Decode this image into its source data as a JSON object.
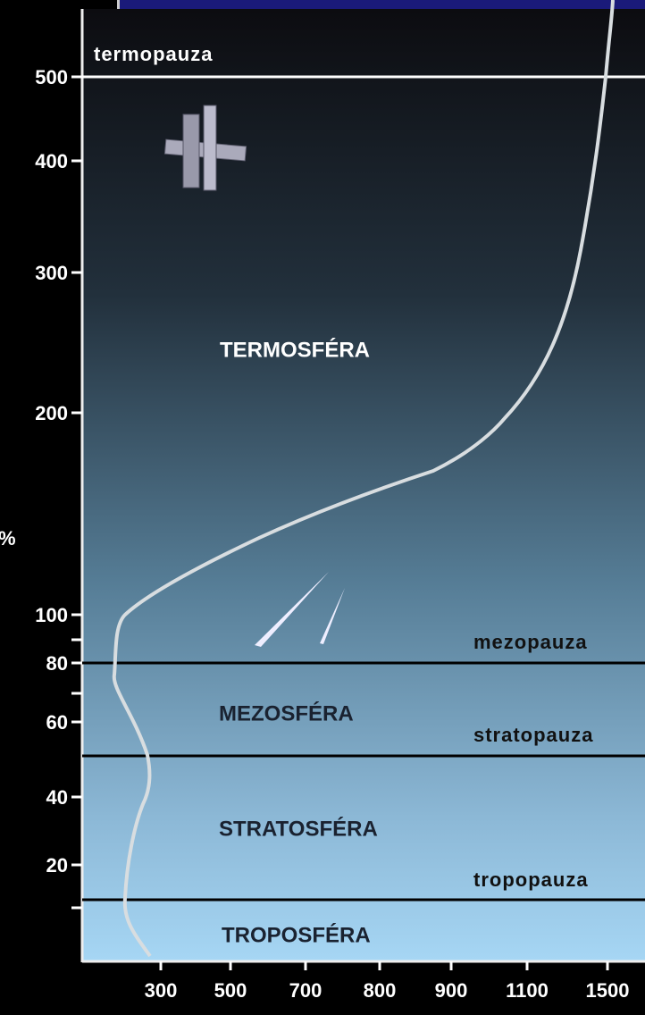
{
  "y_axis": {
    "label": "%",
    "tick_labels": [
      "500",
      "400",
      "300",
      "200",
      "100",
      "80",
      "60",
      "40",
      "20"
    ]
  },
  "x_axis": {
    "tick_labels": [
      "300",
      "500",
      "700",
      "800",
      "900",
      "1100",
      "1500"
    ]
  },
  "boundaries": [
    "termopauza",
    "mezopauza",
    "stratopauza",
    "tropopauza"
  ],
  "layers": [
    "TERMOSFÉRA",
    "MEZOSFÉRA",
    "STRATOSFÉRA",
    "TROPOSFÉRA"
  ]
}
